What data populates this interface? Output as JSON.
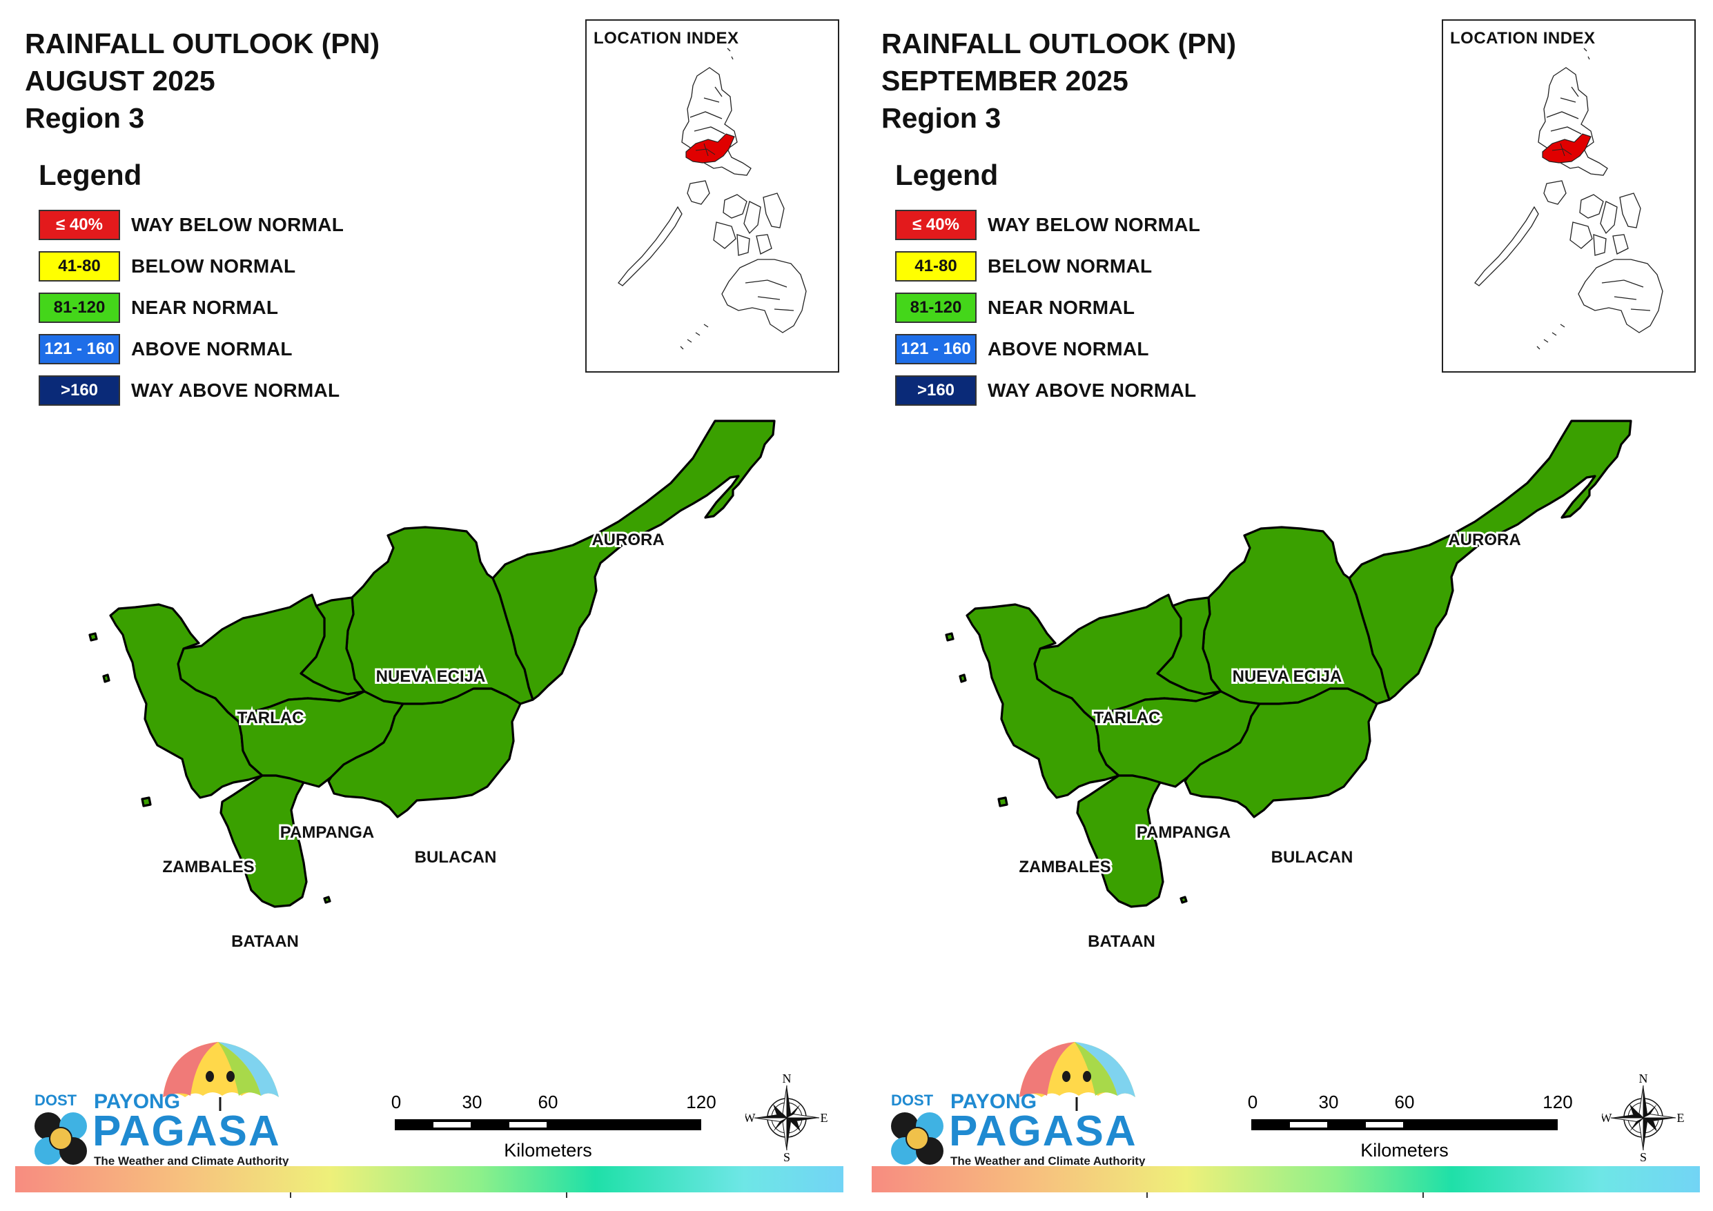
{
  "panels": [
    {
      "title_line1": "RAINFALL OUTLOOK (PN)",
      "title_line2": "AUGUST 2025",
      "title_line3": "Region 3",
      "legend_heading": "Legend",
      "legend": [
        {
          "range": "≤ 40%",
          "label": "WAY BELOW NORMAL",
          "color": "#e31a1c",
          "text_color": "#ffffff"
        },
        {
          "range": "41-80",
          "label": "BELOW NORMAL",
          "color": "#ffff00",
          "text_color": "#111111"
        },
        {
          "range": "81-120",
          "label": "NEAR NORMAL",
          "color": "#44d61a",
          "text_color": "#111111"
        },
        {
          "range": "121 - 160",
          "label": "ABOVE NORMAL",
          "color": "#1e6ee8",
          "text_color": "#ffffff"
        },
        {
          "range": ">160",
          "label": "WAY ABOVE NORMAL",
          "color": "#0a2a78",
          "text_color": "#ffffff"
        }
      ],
      "inset_title": "LOCATION INDEX",
      "provinces": [
        {
          "name": "AURORA",
          "category": "NEAR NORMAL"
        },
        {
          "name": "NUEVA ECIJA",
          "category": "NEAR NORMAL"
        },
        {
          "name": "TARLAC",
          "category": "NEAR NORMAL"
        },
        {
          "name": "PAMPANGA",
          "category": "NEAR NORMAL"
        },
        {
          "name": "BULACAN",
          "category": "NEAR NORMAL"
        },
        {
          "name": "ZAMBALES",
          "category": "NEAR NORMAL"
        },
        {
          "name": "BATAAN",
          "category": "NEAR NORMAL"
        }
      ],
      "scale": {
        "ticks": [
          "0",
          "30",
          "60",
          "120"
        ],
        "unit": "Kilometers"
      },
      "compass": {
        "n": "N",
        "e": "E",
        "s": "S",
        "w": "W"
      },
      "logo": {
        "dost": "DOST",
        "payong": "PAYONG",
        "pagasa": "PAGASA",
        "tagline": "The Weather and Climate Authority"
      }
    },
    {
      "title_line1": "RAINFALL OUTLOOK (PN)",
      "title_line2": "SEPTEMBER 2025",
      "title_line3": "Region 3",
      "legend_heading": "Legend",
      "legend": [
        {
          "range": "≤ 40%",
          "label": "WAY BELOW NORMAL",
          "color": "#e31a1c",
          "text_color": "#ffffff"
        },
        {
          "range": "41-80",
          "label": "BELOW NORMAL",
          "color": "#ffff00",
          "text_color": "#111111"
        },
        {
          "range": "81-120",
          "label": "NEAR NORMAL",
          "color": "#44d61a",
          "text_color": "#111111"
        },
        {
          "range": "121 - 160",
          "label": "ABOVE NORMAL",
          "color": "#1e6ee8",
          "text_color": "#ffffff"
        },
        {
          "range": ">160",
          "label": "WAY ABOVE NORMAL",
          "color": "#0a2a78",
          "text_color": "#ffffff"
        }
      ],
      "inset_title": "LOCATION INDEX",
      "provinces": [
        {
          "name": "AURORA",
          "category": "NEAR NORMAL"
        },
        {
          "name": "NUEVA ECIJA",
          "category": "NEAR NORMAL"
        },
        {
          "name": "TARLAC",
          "category": "NEAR NORMAL"
        },
        {
          "name": "PAMPANGA",
          "category": "NEAR NORMAL"
        },
        {
          "name": "BULACAN",
          "category": "NEAR NORMAL"
        },
        {
          "name": "ZAMBALES",
          "category": "NEAR NORMAL"
        },
        {
          "name": "BATAAN",
          "category": "NEAR NORMAL"
        }
      ],
      "scale": {
        "ticks": [
          "0",
          "30",
          "60",
          "120"
        ],
        "unit": "Kilometers"
      },
      "compass": {
        "n": "N",
        "e": "E",
        "s": "S",
        "w": "W"
      },
      "logo": {
        "dost": "DOST",
        "payong": "PAYONG",
        "pagasa": "PAGASA",
        "tagline": "The Weather and Climate Authority"
      }
    }
  ],
  "colors": {
    "map_fill": "#3aa000",
    "region_highlight": "#e00000",
    "outline": "#000000"
  }
}
